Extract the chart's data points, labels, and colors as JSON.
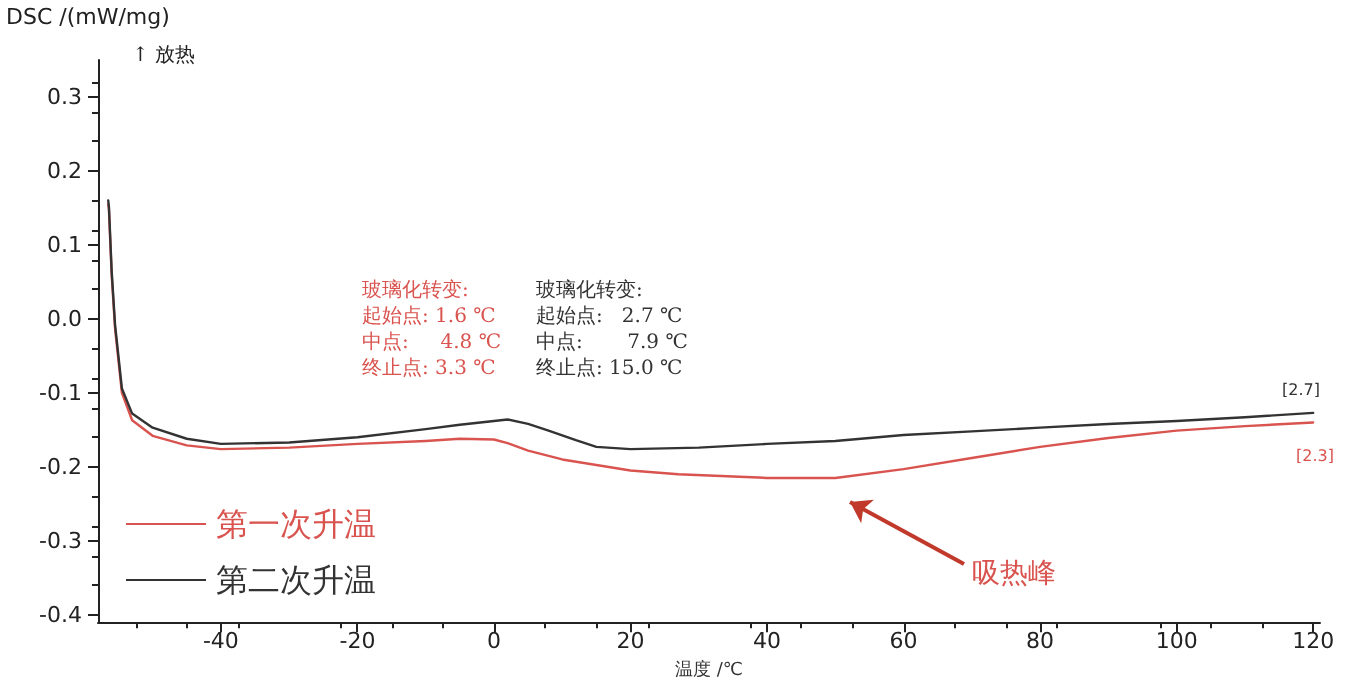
{
  "chart_data": {
    "type": "line",
    "xlabel": "温度 /℃",
    "ylabel": "DSC /(mW/mg)",
    "xlim": [
      -58,
      121
    ],
    "ylim": [
      -0.41,
      0.35
    ],
    "xticks": [
      -40,
      -20,
      0,
      20,
      40,
      60,
      80,
      100,
      120
    ],
    "yticks": [
      -0.4,
      -0.3,
      -0.2,
      -0.1,
      {
        "value": 0,
        "label": "0.0"
      },
      0.1,
      0.2,
      0.3
    ],
    "grid": false,
    "legend": "bottom left",
    "marker": "none",
    "line_style": "solid",
    "series": [
      {
        "name": "第一次升温",
        "color": "#d9534f",
        "x": [
          -56.5,
          -56.4,
          -56,
          -55.5,
          -54.5,
          -53,
          -50,
          -45,
          -40,
          -30,
          -20,
          -10,
          -5,
          0,
          2,
          5,
          10,
          20,
          27,
          40,
          50,
          60,
          70,
          80,
          90,
          100,
          110,
          120
        ],
        "values": [
          0.155,
          0.148,
          0.06,
          -0.013,
          -0.1,
          -0.137,
          -0.158,
          -0.171,
          -0.176,
          -0.174,
          -0.169,
          -0.165,
          -0.162,
          -0.163,
          -0.168,
          -0.178,
          -0.19,
          -0.205,
          -0.21,
          -0.215,
          -0.215,
          -0.203,
          -0.188,
          -0.173,
          -0.161,
          -0.151,
          -0.145,
          -0.14
        ]
      },
      {
        "name": "第二次升温",
        "color": "#333333",
        "x": [
          -56.5,
          -56.4,
          -56,
          -55.5,
          -54.5,
          -53,
          -50,
          -45,
          -40,
          -30,
          -20,
          -10,
          -5,
          0,
          2,
          5,
          8,
          12,
          15,
          20,
          30,
          40,
          50,
          60,
          70,
          80,
          90,
          100,
          110,
          120
        ],
        "values": [
          0.16,
          0.152,
          0.065,
          -0.008,
          -0.094,
          -0.128,
          -0.147,
          -0.162,
          -0.169,
          -0.167,
          -0.16,
          -0.149,
          -0.143,
          -0.138,
          -0.136,
          -0.142,
          -0.151,
          -0.164,
          -0.173,
          -0.176,
          -0.174,
          -0.169,
          -0.165,
          -0.157,
          -0.152,
          -0.147,
          -0.142,
          -0.138,
          -0.133,
          -0.127
        ]
      }
    ],
    "annotations": [
      "↑ 放热",
      "玻璃化转变:\n起始点: 1.6 ℃\n中点:     4.8 ℃\n终止点: 3.3 ℃",
      "玻璃化转变:\n起始点:   2.7 ℃\n中点:       7.9 ℃\n终止点: 15.0 ℃",
      "[2.7]",
      "[2.3]",
      "吸热峰"
    ]
  }
}
